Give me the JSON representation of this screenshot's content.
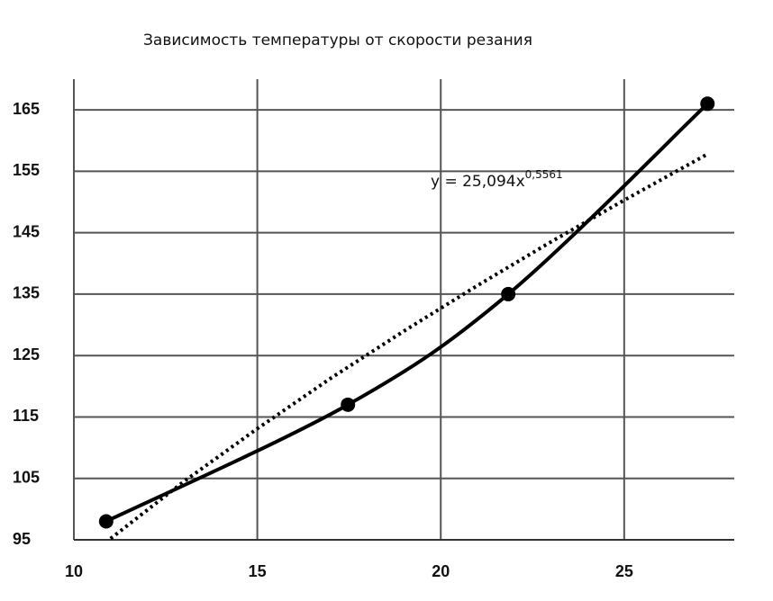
{
  "chart_data": {
    "type": "line",
    "title": "Зависимость температуры от скорости резания",
    "x": [
      10.88,
      17.47,
      21.84,
      27.27
    ],
    "series": [
      {
        "color": "#000000",
        "values": [
          98,
          117,
          135,
          166
        ]
      }
    ],
    "trendline": {
      "equation": "y = 25,094x",
      "exponent": "0,5561",
      "color": "#000000",
      "x": [
        11,
        13,
        15,
        17,
        19,
        21,
        23,
        25,
        27.3
      ],
      "values": [
        95.2,
        104.5,
        113.1,
        121.3,
        129.0,
        136.4,
        143.5,
        150.3,
        157.9
      ]
    },
    "xlim": [
      10,
      28
    ],
    "xticks": [
      10,
      15,
      20,
      25
    ],
    "ylim": [
      95,
      170
    ],
    "yticks": [
      95,
      105,
      115,
      125,
      135,
      145,
      155,
      165
    ],
    "grid": true
  }
}
